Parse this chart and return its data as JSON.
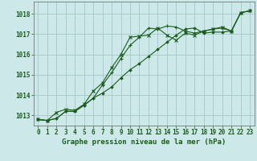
{
  "title": "Graphe pression niveau de la mer (hPa)",
  "background_color": "#cce8e8",
  "grid_color": "#aacccc",
  "line_color": "#1a5c1a",
  "xlim": [
    -0.5,
    23.5
  ],
  "ylim": [
    1012.5,
    1018.6
  ],
  "yticks": [
    1013,
    1014,
    1015,
    1016,
    1017,
    1018
  ],
  "xticks": [
    0,
    1,
    2,
    3,
    4,
    5,
    6,
    7,
    8,
    9,
    10,
    11,
    12,
    13,
    14,
    15,
    16,
    17,
    18,
    19,
    20,
    21,
    22,
    23
  ],
  "series1": [
    1012.8,
    1012.75,
    1012.85,
    1013.2,
    1013.2,
    1013.5,
    1013.85,
    1014.1,
    1014.4,
    1014.85,
    1015.25,
    1015.55,
    1015.9,
    1016.25,
    1016.6,
    1016.95,
    1017.25,
    1017.3,
    1017.05,
    1017.1,
    1017.1,
    1017.15,
    1018.05,
    1018.15
  ],
  "series2": [
    1012.8,
    1012.75,
    1012.85,
    1013.2,
    1013.2,
    1013.5,
    1013.85,
    1014.5,
    1015.1,
    1015.8,
    1016.45,
    1016.85,
    1017.3,
    1017.25,
    1017.4,
    1017.35,
    1017.15,
    1017.05,
    1017.15,
    1017.25,
    1017.3,
    1017.15,
    1018.05,
    1018.15
  ],
  "series3": [
    1012.8,
    1012.75,
    1013.15,
    1013.3,
    1013.25,
    1013.55,
    1014.2,
    1014.6,
    1015.35,
    1016.0,
    1016.85,
    1016.9,
    1016.95,
    1017.3,
    1016.95,
    1016.7,
    1017.05,
    1016.95,
    1017.15,
    1017.25,
    1017.35,
    1017.15,
    1018.05,
    1018.15
  ],
  "title_fontsize": 6.5,
  "tick_fontsize": 5.5
}
